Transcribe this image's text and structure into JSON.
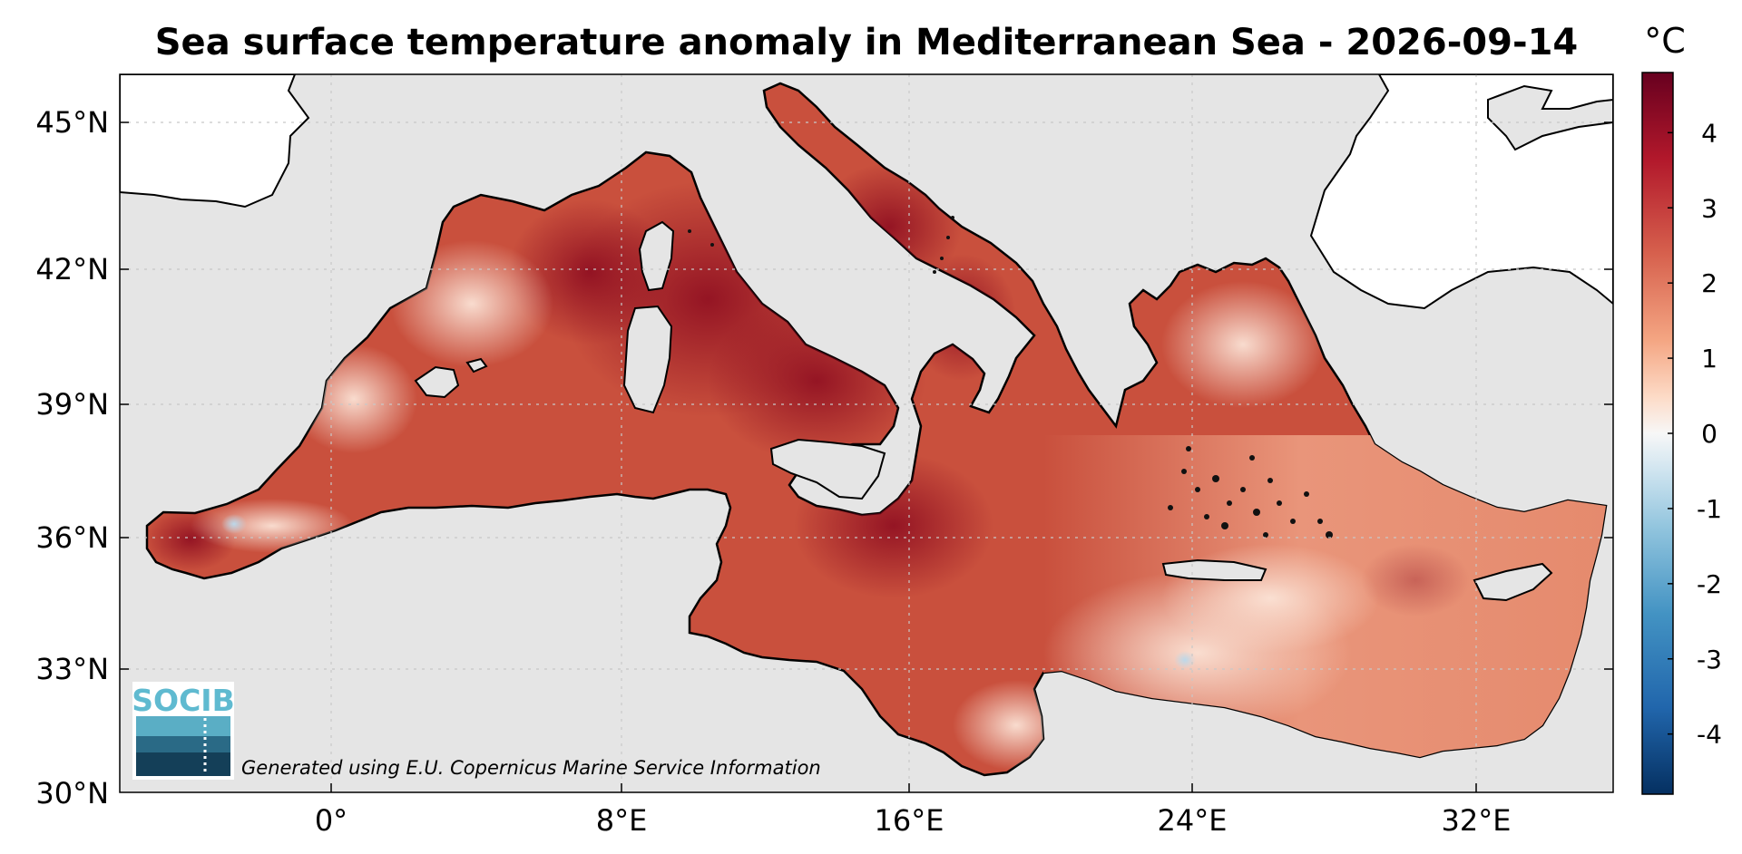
{
  "map": {
    "title": "Sea surface temperature anomaly in Mediterranean Sea - 2026-09-14",
    "unit": "°C",
    "credit": "Generated using E.U. Copernicus Marine Service Information",
    "logo_text": "SOCIB",
    "lat_ticks": [
      "45°N",
      "42°N",
      "39°N",
      "36°N",
      "33°N",
      "30°N"
    ],
    "lon_ticks": [
      "0°",
      "8°E",
      "16°E",
      "24°E",
      "32°E"
    ],
    "colorbar_ticks": [
      "4",
      "3",
      "2",
      "1",
      "0",
      "-1",
      "-2",
      "-3",
      "-4"
    ],
    "colorbar_range": [
      -4.8,
      4.8
    ],
    "colors": {
      "background": "#e5e5e5",
      "land": "#ffffff",
      "coast": "#000000",
      "warm_strong": "#8b0a1f",
      "warm_mid": "#c64032",
      "warm_light": "#f2b59a",
      "neutral": "#f7f7f7",
      "cool_light": "#bcd8ea",
      "cool_strong": "#0a3a6d"
    }
  }
}
